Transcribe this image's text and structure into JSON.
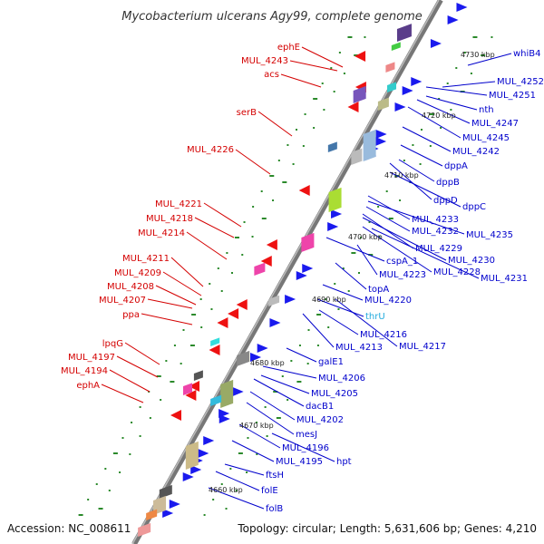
{
  "title": "Mycobacterium ulcerans Agy99, complete genome",
  "accession": "Accession: NC_008611",
  "topology": "Topology: circular; Length: 5,631,606 bp; Genes: 4,210",
  "colors": {
    "left_label": "#d40000",
    "right_label": "#0000cc",
    "special_label": "#22aadd",
    "backbone": "#888888",
    "orf_marker": "#2b8a2b"
  },
  "kbp_marks": [
    "4660 kbp",
    "4670 kbp",
    "4680 kbp",
    "4690 kbp",
    "4700 kbp",
    "4710 kbp",
    "4720 kbp",
    "4730 kbp"
  ],
  "left_labels": [
    "ephE",
    "MUL_4243",
    "acs",
    "serB",
    "MUL_4226",
    "MUL_4221",
    "MUL_4218",
    "MUL_4214",
    "MUL_4211",
    "MUL_4209",
    "MUL_4208",
    "MUL_4207",
    "ppa",
    "lpqG",
    "MUL_4197",
    "MUL_4194",
    "ephA"
  ],
  "right_labels": [
    "whiB4",
    "MUL_4252",
    "MUL_4251",
    "nth",
    "MUL_4247",
    "MUL_4245",
    "MUL_4242",
    "dppA",
    "dppB",
    "dppD",
    "dppC",
    "MUL_4233",
    "MUL_4232",
    "MUL_4235",
    "MUL_4229",
    "MUL_4230",
    "cspA_1",
    "MUL_4228",
    "MUL_4231",
    "topA",
    "MUL_4223",
    "MUL_4220",
    "thrU",
    "MUL_4216",
    "MUL_4217",
    "MUL_4213",
    "galE1",
    "MUL_4206",
    "MUL_4205",
    "dacB1",
    "MUL_4202",
    "mesJ",
    "MUL_4196",
    "hpt",
    "MUL_4195",
    "ftsH",
    "folE",
    "folB"
  ]
}
